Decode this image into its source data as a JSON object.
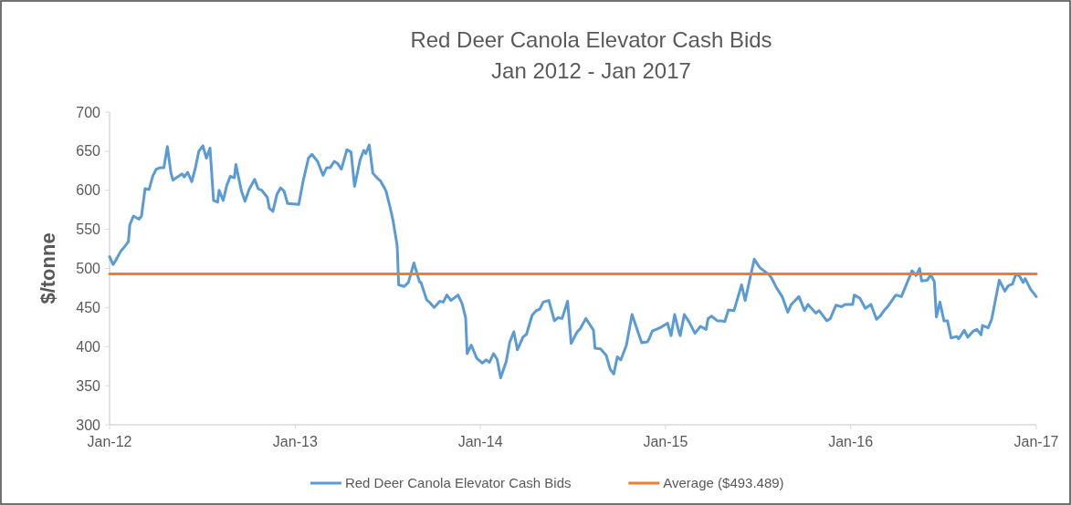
{
  "chart_data": {
    "type": "line",
    "title": "Red Deer Canola Elevator Cash Bids",
    "subtitle": "Jan 2012 - Jan 2017",
    "ylabel": "$/tonne",
    "xlim": [
      "2012-01-01",
      "2017-01-01"
    ],
    "xticks": [
      {
        "value": "2012-01-01",
        "label": "Jan-12"
      },
      {
        "value": "2013-01-01",
        "label": "Jan-13"
      },
      {
        "value": "2014-01-01",
        "label": "Jan-14"
      },
      {
        "value": "2015-01-01",
        "label": "Jan-15"
      },
      {
        "value": "2016-01-01",
        "label": "Jan-16"
      },
      {
        "value": "2017-01-01",
        "label": "Jan-17"
      }
    ],
    "ylim": [
      300,
      700
    ],
    "yticks": [
      300,
      350,
      400,
      450,
      500,
      550,
      600,
      650,
      700
    ],
    "grid": false,
    "legend": "bottom",
    "marker": "none",
    "line_style": "solid",
    "series": [
      {
        "name": "Red Deer Canola Elevator Cash Bids",
        "color": "#5b9bd5",
        "x": [
          "2012-01-01",
          "2012-01-08",
          "2012-01-12",
          "2012-01-23",
          "2012-01-27",
          "2012-02-07",
          "2012-02-10",
          "2012-02-17",
          "2012-02-28",
          "2012-03-04",
          "2012-03-11",
          "2012-03-19",
          "2012-03-26",
          "2012-04-02",
          "2012-04-10",
          "2012-04-17",
          "2012-04-24",
          "2012-05-01",
          "2012-05-05",
          "2012-05-23",
          "2012-05-27",
          "2012-06-03",
          "2012-06-11",
          "2012-06-18",
          "2012-06-25",
          "2012-07-03",
          "2012-07-10",
          "2012-07-17",
          "2012-07-24",
          "2012-08-01",
          "2012-08-04",
          "2012-08-12",
          "2012-08-19",
          "2012-08-26",
          "2012-09-03",
          "2012-09-06",
          "2012-09-17",
          "2012-09-24",
          "2012-10-02",
          "2012-10-13",
          "2012-10-20",
          "2012-10-27",
          "2012-11-07",
          "2012-11-11",
          "2012-11-18",
          "2012-11-26",
          "2012-12-03",
          "2012-12-10",
          "2012-12-17",
          "2013-01-08",
          "2013-01-16",
          "2013-01-27",
          "2013-02-03",
          "2013-02-14",
          "2013-02-25",
          "2013-03-04",
          "2013-03-11",
          "2013-03-19",
          "2013-03-26",
          "2013-04-02",
          "2013-04-13",
          "2013-04-21",
          "2013-04-28",
          "2013-05-09",
          "2013-05-16",
          "2013-05-20",
          "2013-05-27",
          "2013-06-03",
          "2013-06-11",
          "2013-06-18",
          "2013-06-25",
          "2013-06-29",
          "2013-07-06",
          "2013-07-13",
          "2013-07-21",
          "2013-07-24",
          "2013-08-04",
          "2013-08-12",
          "2013-08-23",
          "2013-09-03",
          "2013-09-06",
          "2013-09-17",
          "2013-09-24",
          "2013-10-02",
          "2013-10-13",
          "2013-10-20",
          "2013-10-27",
          "2013-11-04",
          "2013-11-18",
          "2013-11-26",
          "2013-12-03",
          "2013-12-06",
          "2013-12-14",
          "2013-12-25",
          "2014-01-05",
          "2014-01-12",
          "2014-01-19",
          "2014-01-27",
          "2014-02-03",
          "2014-02-10",
          "2014-02-21",
          "2014-02-28",
          "2014-03-08",
          "2014-03-15",
          "2014-03-26",
          "2014-04-02",
          "2014-04-13",
          "2014-04-21",
          "2014-04-28",
          "2014-05-05",
          "2014-05-16",
          "2014-05-27",
          "2014-06-03",
          "2014-06-11",
          "2014-06-22",
          "2014-06-29",
          "2014-07-10",
          "2014-07-17",
          "2014-07-28",
          "2014-08-12",
          "2014-08-15",
          "2014-08-26",
          "2014-09-06",
          "2014-09-14",
          "2014-09-21",
          "2014-09-28",
          "2014-10-05",
          "2014-10-16",
          "2014-10-27",
          "2014-11-15",
          "2014-11-26",
          "2014-11-29",
          "2014-12-06",
          "2014-12-21",
          "2015-01-05",
          "2015-01-12",
          "2015-01-19",
          "2015-01-27",
          "2015-01-30",
          "2015-02-07",
          "2015-02-17",
          "2015-02-28",
          "2015-03-11",
          "2015-03-22",
          "2015-03-26",
          "2015-04-02",
          "2015-04-13",
          "2015-04-21",
          "2015-04-28",
          "2015-05-05",
          "2015-05-16",
          "2015-05-20",
          "2015-05-31",
          "2015-06-07",
          "2015-06-25",
          "2015-07-06",
          "2015-07-24",
          "2015-07-28",
          "2015-08-08",
          "2015-08-19",
          "2015-08-30",
          "2015-09-06",
          "2015-09-21",
          "2015-10-02",
          "2015-10-09",
          "2015-10-24",
          "2015-10-31",
          "2015-11-15",
          "2015-11-22",
          "2015-12-03",
          "2015-12-14",
          "2015-12-21",
          "2016-01-05",
          "2016-01-08",
          "2016-01-19",
          "2016-01-30",
          "2016-02-10",
          "2016-02-21",
          "2016-02-28",
          "2016-03-08",
          "2016-03-15",
          "2016-03-30",
          "2016-04-10",
          "2016-05-01",
          "2016-05-09",
          "2016-05-16",
          "2016-05-20",
          "2016-05-31",
          "2016-06-07",
          "2016-06-14",
          "2016-06-18",
          "2016-06-25",
          "2016-07-03",
          "2016-07-10",
          "2016-07-17",
          "2016-07-28",
          "2016-08-01",
          "2016-08-12",
          "2016-08-19",
          "2016-08-30",
          "2016-09-06",
          "2016-09-14",
          "2016-09-17",
          "2016-09-28",
          "2016-10-05",
          "2016-10-20",
          "2016-10-31",
          "2016-11-07",
          "2016-11-15",
          "2016-11-22",
          "2016-11-29",
          "2016-12-06",
          "2016-12-10",
          "2016-12-21",
          "2017-01-01"
        ],
        "values": [
          515,
          505,
          509,
          522,
          525,
          534,
          556,
          567,
          563,
          567,
          602,
          601,
          618,
          627,
          629,
          629,
          656,
          622,
          613,
          621,
          617,
          623,
          611,
          628,
          650,
          657,
          641,
          654,
          587,
          585,
          600,
          587,
          606,
          618,
          616,
          633,
          599,
          586,
          601,
          614,
          602,
          600,
          591,
          577,
          573,
          595,
          603,
          599,
          583,
          582,
          610,
          641,
          646,
          637,
          619,
          629,
          629,
          637,
          634,
          627,
          652,
          649,
          605,
          639,
          651,
          647,
          658,
          622,
          616,
          612,
          604,
          599,
          581,
          561,
          529,
          479,
          477,
          482,
          507,
          483,
          482,
          460,
          456,
          450,
          458,
          457,
          466,
          459,
          466,
          455,
          437,
          391,
          402,
          385,
          379,
          383,
          380,
          391,
          384,
          360,
          381,
          406,
          419,
          396,
          412,
          416,
          440,
          446,
          448,
          457,
          459,
          433,
          437,
          436,
          458,
          404,
          418,
          423,
          436,
          421,
          398,
          397,
          389,
          371,
          365,
          387,
          383,
          402,
          441,
          405,
          406,
          409,
          420,
          424,
          430,
          414,
          441,
          420,
          414,
          441,
          431,
          417,
          426,
          422,
          436,
          439,
          433,
          433,
          432,
          447,
          446,
          455,
          479,
          459,
          512,
          501,
          492,
          489,
          475,
          464,
          444,
          454,
          464,
          446,
          454,
          443,
          446,
          433,
          436,
          453,
          451,
          454,
          454,
          466,
          462,
          449,
          454,
          435,
          439,
          447,
          452,
          466,
          464,
          497,
          491,
          500,
          484,
          485,
          492,
          483,
          438,
          457,
          433,
          433,
          411,
          413,
          410,
          421,
          412,
          420,
          422,
          415,
          427,
          424,
          435,
          485,
          471,
          478,
          480,
          493,
          490,
          482,
          487,
          473,
          464
        ]
      },
      {
        "name": "Average ($493.489)",
        "color": "#ed7d31",
        "x": [
          "2012-01-01",
          "2017-01-01"
        ],
        "values": [
          493,
          493
        ]
      }
    ]
  }
}
